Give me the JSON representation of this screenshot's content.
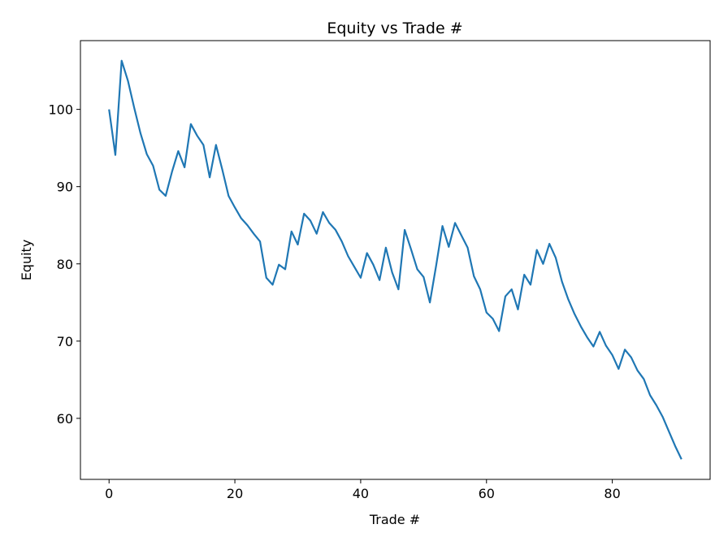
{
  "chart_data": {
    "type": "line",
    "title": "Equity vs Trade #",
    "xlabel": "Trade #",
    "ylabel": "Equity",
    "x": [
      0,
      1,
      2,
      3,
      4,
      5,
      6,
      7,
      8,
      9,
      10,
      11,
      12,
      13,
      14,
      15,
      16,
      17,
      18,
      19,
      20,
      21,
      22,
      23,
      24,
      25,
      26,
      27,
      28,
      29,
      30,
      31,
      32,
      33,
      34,
      35,
      36,
      37,
      38,
      39,
      40,
      41,
      42,
      43,
      44,
      45,
      46,
      47,
      48,
      49,
      50,
      51,
      52,
      53,
      54,
      55,
      56,
      57,
      58,
      59,
      60,
      61,
      62,
      63,
      64,
      65,
      66,
      67,
      68,
      69,
      70,
      71,
      72,
      73,
      74,
      75,
      76,
      77,
      78,
      79,
      80,
      81,
      82,
      83,
      84,
      85,
      86,
      87,
      88,
      89,
      90,
      91
    ],
    "series": [
      {
        "name": "Equity",
        "color": "#1f77b4",
        "values": [
          100,
          94.1,
          106.3,
          103.7,
          100.2,
          96.9,
          94.2,
          92.7,
          89.6,
          88.8,
          91.9,
          94.6,
          92.5,
          98.1,
          96.6,
          95.4,
          91.2,
          95.4,
          92.2,
          88.8,
          87.3,
          85.9,
          85.0,
          83.9,
          82.9,
          78.2,
          77.3,
          79.9,
          79.3,
          84.2,
          82.5,
          86.5,
          85.6,
          83.9,
          86.7,
          85.3,
          84.4,
          82.9,
          81.0,
          79.6,
          78.2,
          81.4,
          79.9,
          77.9,
          82.1,
          78.9,
          76.7,
          84.4,
          81.9,
          79.3,
          78.3,
          75.0,
          79.8,
          84.9,
          82.2,
          85.3,
          83.7,
          82.1,
          78.4,
          76.7,
          73.7,
          72.9,
          71.3,
          75.8,
          76.7,
          74.1,
          78.6,
          77.3,
          81.8,
          80.0,
          82.6,
          80.8,
          77.7,
          75.4,
          73.5,
          71.9,
          70.5,
          69.3,
          71.2,
          69.4,
          68.2,
          66.4,
          68.9,
          67.9,
          66.2,
          65.1,
          63.0,
          61.7,
          60.2,
          58.3,
          56.4,
          54.7
        ]
      }
    ],
    "xlim": [
      -4.55,
      95.55
    ],
    "ylim": [
      52.1,
      108.9
    ],
    "xticks": [
      0,
      20,
      40,
      60,
      80
    ],
    "yticks": [
      60,
      70,
      80,
      90,
      100
    ]
  }
}
